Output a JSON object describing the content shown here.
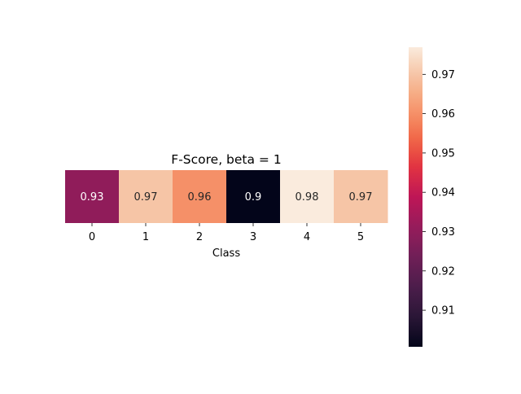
{
  "chart_data": {
    "type": "heatmap",
    "title": "F-Score, beta = 1",
    "xlabel": "Class",
    "ylabel": "",
    "categories": [
      "0",
      "1",
      "2",
      "3",
      "4",
      "5"
    ],
    "values": [
      0.93,
      0.97,
      0.96,
      0.9,
      0.98,
      0.97
    ],
    "annotations": [
      "0.93",
      "0.97",
      "0.96",
      "0.9",
      "0.98",
      "0.97"
    ],
    "colormap": "rocket",
    "colorbar": {
      "range": [
        0.9007,
        0.9769
      ],
      "ticks": [
        0.91,
        0.92,
        0.93,
        0.94,
        0.95,
        0.96,
        0.97
      ],
      "tick_labels": [
        "0.91",
        "0.92",
        "0.93",
        "0.94",
        "0.95",
        "0.96",
        "0.97"
      ],
      "placement": "right"
    },
    "grid": false
  }
}
